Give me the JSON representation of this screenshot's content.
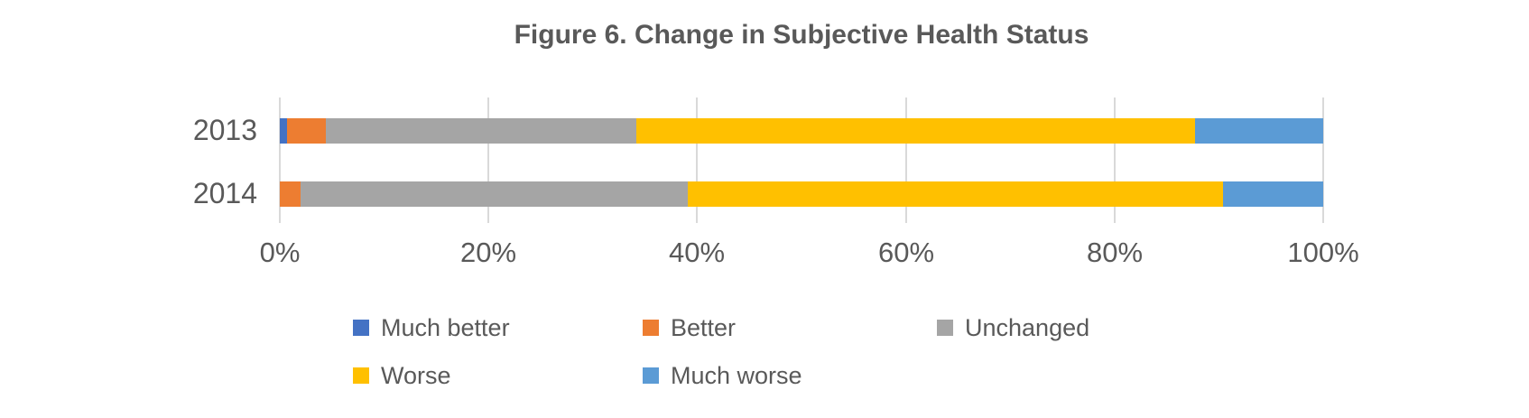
{
  "chart_data": {
    "type": "bar",
    "orientation": "horizontal",
    "stacked": true,
    "title": "Figure 6. Change in Subjective Health Status",
    "categories": [
      "2013",
      "2014"
    ],
    "series": [
      {
        "name": "Much better",
        "color": "#4472C4",
        "values": [
          0.7,
          0.0
        ]
      },
      {
        "name": "Better",
        "color": "#ED7D31",
        "values": [
          3.7,
          2.0
        ]
      },
      {
        "name": "Unchanged",
        "color": "#A5A5A5",
        "values": [
          29.8,
          37.1
        ]
      },
      {
        "name": "Worse",
        "color": "#FFC000",
        "values": [
          53.5,
          51.3
        ]
      },
      {
        "name": "Much worse",
        "color": "#5B9BD5",
        "values": [
          12.3,
          9.6
        ]
      }
    ],
    "xlim": [
      0,
      100
    ],
    "x_tick_labels": [
      "0%",
      "20%",
      "40%",
      "60%",
      "80%",
      "100%"
    ],
    "grid": "vertical",
    "gridline_color": "#D9D9D9",
    "legend_position": "bottom",
    "legend_rows": [
      [
        "Much better",
        "Better",
        "Unchanged"
      ],
      [
        "Worse",
        "Much worse"
      ]
    ],
    "text_color": "#595959",
    "background_color": "#FFFFFF",
    "units": "percent"
  }
}
